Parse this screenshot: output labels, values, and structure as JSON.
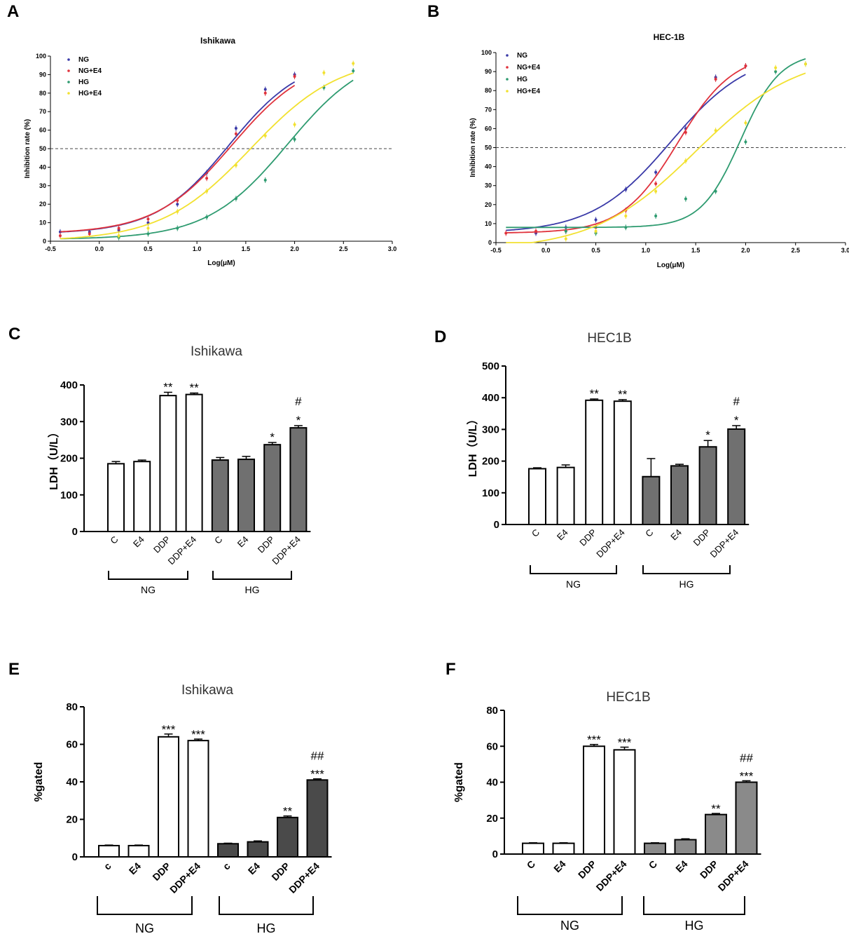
{
  "figure": {
    "letters": [
      "A",
      "B",
      "C",
      "D",
      "E",
      "F"
    ]
  },
  "chart_data": [
    {
      "panel": "A",
      "type": "scatter",
      "title": "Ishikawa",
      "xlabel": "Log(μM)",
      "ylabel": "Inhibition rate (%)",
      "xlim": [
        -0.5,
        3.0
      ],
      "ylim": [
        0,
        100
      ],
      "xticks": [
        "-0.5",
        "0.0",
        "0.5",
        "1.0",
        "1.5",
        "2.0",
        "2.5",
        "3.0"
      ],
      "yticks": [
        "0",
        "10",
        "20",
        "30",
        "40",
        "50",
        "60",
        "70",
        "80",
        "90",
        "100"
      ],
      "reference_line": 50,
      "series": [
        {
          "name": "NG",
          "color": "#3a3aa8",
          "x": [
            -0.4,
            -0.1,
            0.2,
            0.5,
            0.8,
            1.1,
            1.4,
            1.7,
            2.0
          ],
          "y": [
            5,
            5,
            6,
            10,
            20,
            37,
            61,
            82,
            90
          ],
          "logIC50": 1.33,
          "bottom": 4,
          "top": 100,
          "hill": 1.15,
          "xmax": 2.0
        },
        {
          "name": "NG+E4",
          "color": "#e0323c",
          "x": [
            -0.4,
            -0.1,
            0.2,
            0.5,
            0.8,
            1.1,
            1.4,
            1.7,
            2.0
          ],
          "y": [
            3,
            4,
            7,
            12,
            22,
            34,
            58,
            80,
            89
          ],
          "logIC50": 1.36,
          "bottom": 4,
          "top": 100,
          "hill": 1.1,
          "xmax": 2.0
        },
        {
          "name": "HG",
          "color": "#2e9b70",
          "x": [
            0.2,
            0.5,
            0.8,
            1.1,
            1.4,
            1.7,
            2.0,
            2.3,
            2.6
          ],
          "y": [
            2,
            4,
            7,
            13,
            23,
            33,
            55,
            83,
            92
          ],
          "logIC50": 1.93,
          "bottom": 1,
          "top": 104,
          "hill": 1.05,
          "xmax": 2.6
        },
        {
          "name": "HG+E4",
          "color": "#f2e130",
          "x": [
            0.2,
            0.5,
            0.8,
            1.1,
            1.4,
            1.7,
            2.0,
            2.3,
            2.6
          ],
          "y": [
            3,
            7,
            16,
            27,
            41,
            57,
            63,
            91,
            96
          ],
          "logIC50": 1.55,
          "bottom": 0,
          "top": 100,
          "hill": 0.95,
          "xmax": 2.6
        }
      ]
    },
    {
      "panel": "B",
      "type": "scatter",
      "title": "HEC-1B",
      "xlabel": "Log(μM)",
      "ylabel": "Inhibition rate (%)",
      "xlim": [
        -0.5,
        3.0
      ],
      "ylim": [
        0,
        100
      ],
      "xticks": [
        "-0.5",
        "0.0",
        "0.5",
        "1.0",
        "1.5",
        "2.0",
        "2.5",
        "3.0"
      ],
      "yticks": [
        "0",
        "10",
        "20",
        "30",
        "40",
        "50",
        "60",
        "70",
        "80",
        "90",
        "100"
      ],
      "reference_line": 50,
      "series": [
        {
          "name": "NG",
          "color": "#3a3aa8",
          "x": [
            -0.1,
            0.2,
            0.5,
            0.8,
            1.1,
            1.4,
            1.7,
            2.0
          ],
          "y": [
            5,
            8,
            12,
            28,
            37,
            60,
            87,
            93
          ],
          "logIC50": 1.25,
          "bottom": 5,
          "top": 101,
          "hill": 1.1,
          "xmax": 2.0
        },
        {
          "name": "NG+E4",
          "color": "#e0323c",
          "x": [
            -0.4,
            -0.1,
            0.2,
            0.5,
            0.8,
            1.1,
            1.4,
            1.7,
            2.0
          ],
          "y": [
            5,
            6,
            6,
            8,
            17,
            31,
            58,
            86,
            93
          ],
          "logIC50": 1.32,
          "bottom": 5,
          "top": 100,
          "hill": 1.55,
          "xmax": 2.0
        },
        {
          "name": "HG",
          "color": "#2e9b70",
          "x": [
            0.2,
            0.5,
            0.8,
            1.1,
            1.4,
            1.7,
            2.0,
            2.3,
            2.6
          ],
          "y": [
            6,
            5,
            8,
            14,
            23,
            27,
            53,
            90,
            94
          ],
          "logIC50": 1.95,
          "bottom": 8,
          "top": 100,
          "hill": 2.2,
          "xmax": 2.6
        },
        {
          "name": "HG+E4",
          "color": "#f2e130",
          "x": [
            0.2,
            0.5,
            0.8,
            1.1,
            1.4,
            1.7,
            2.0,
            2.3,
            2.6
          ],
          "y": [
            2,
            6,
            14,
            27,
            43,
            59,
            63,
            92,
            94
          ],
          "logIC50": 1.5,
          "bottom": -4,
          "top": 100,
          "hill": 0.85,
          "xmax": 2.6
        }
      ]
    },
    {
      "panel": "C",
      "type": "bar",
      "title": "Ishikawa",
      "ylabel": "LDH（U/L）",
      "ylim": [
        0,
        400
      ],
      "yticks": [
        "0",
        "100",
        "200",
        "300",
        "400"
      ],
      "categories": [
        "C",
        "E4",
        "DDP",
        "DDP+E4",
        "C",
        "E4",
        "DDP",
        "DDP+E4"
      ],
      "values": [
        185,
        191,
        371,
        374,
        195,
        197,
        237,
        283
      ],
      "errors": [
        6,
        4,
        9,
        4,
        7,
        8,
        6,
        6
      ],
      "fill": [
        "#ffffff",
        "#ffffff",
        "#ffffff",
        "#ffffff",
        "#707070",
        "#707070",
        "#707070",
        "#707070"
      ],
      "annotations": [
        "",
        "",
        "**",
        "**",
        "",
        "",
        "*",
        "#\n*"
      ],
      "groups": [
        "NG",
        "HG"
      ]
    },
    {
      "panel": "D",
      "type": "bar",
      "title": "HEC1B",
      "ylabel": "LDH（U/L）",
      "ylim": [
        0,
        500
      ],
      "yticks": [
        "0",
        "100",
        "200",
        "300",
        "400",
        "500"
      ],
      "categories": [
        "C",
        "E4",
        "DDP",
        "DDP+E4",
        "C",
        "E4",
        "DDP",
        "DDP+E4"
      ],
      "values": [
        176,
        180,
        392,
        389,
        151,
        185,
        245,
        301
      ],
      "errors": [
        3,
        8,
        4,
        5,
        57,
        5,
        20,
        11
      ],
      "fill": [
        "#ffffff",
        "#ffffff",
        "#ffffff",
        "#ffffff",
        "#707070",
        "#707070",
        "#707070",
        "#707070"
      ],
      "annotations": [
        "",
        "",
        "**",
        "**",
        "",
        "",
        "*",
        "#\n*"
      ],
      "groups": [
        "NG",
        "HG"
      ]
    },
    {
      "panel": "E",
      "type": "bar",
      "title": "Ishikawa",
      "ylabel": "%gated",
      "ylim": [
        0,
        80
      ],
      "yticks": [
        "0",
        "20",
        "40",
        "60",
        "80"
      ],
      "categories": [
        "c",
        "E4",
        "DDP",
        "DDP+E4",
        "c",
        "E4",
        "DDP",
        "DDP+E4"
      ],
      "values": [
        6,
        6,
        64,
        62,
        7,
        8,
        21,
        41
      ],
      "errors": [
        0.3,
        0.3,
        1.5,
        0.8,
        0.3,
        0.5,
        0.8,
        0.6
      ],
      "fill": [
        "#ffffff",
        "#ffffff",
        "#ffffff",
        "#ffffff",
        "#4a4a4a",
        "#4a4a4a",
        "#4a4a4a",
        "#4a4a4a"
      ],
      "annotations": [
        "",
        "",
        "***",
        "***",
        "",
        "",
        "**",
        "##\n***"
      ],
      "groups": [
        "NG",
        "HG"
      ]
    },
    {
      "panel": "F",
      "type": "bar",
      "title": "HEC1B",
      "ylabel": "%gated",
      "ylim": [
        0,
        80
      ],
      "yticks": [
        "0",
        "20",
        "40",
        "60",
        "80"
      ],
      "categories": [
        "C",
        "E4",
        "DDP",
        "DDP+E4",
        "C",
        "E4",
        "DDP",
        "DDP+E4"
      ],
      "values": [
        6,
        6,
        60,
        58,
        6,
        8,
        22,
        40
      ],
      "errors": [
        0.3,
        0.3,
        1.0,
        1.5,
        0.3,
        0.5,
        0.6,
        0.8
      ],
      "fill": [
        "#ffffff",
        "#ffffff",
        "#ffffff",
        "#ffffff",
        "#8a8a8a",
        "#8a8a8a",
        "#8a8a8a",
        "#8a8a8a"
      ],
      "annotations": [
        "",
        "",
        "***",
        "***",
        "",
        "",
        "**",
        "##\n***"
      ],
      "groups": [
        "NG",
        "HG"
      ]
    }
  ]
}
